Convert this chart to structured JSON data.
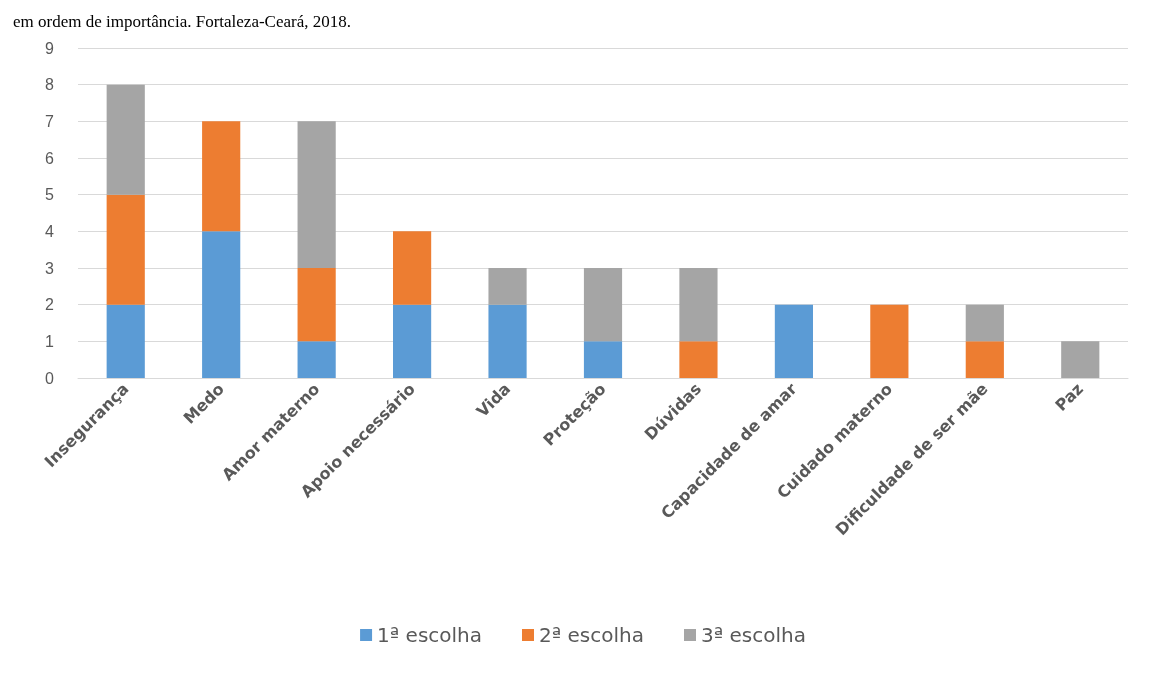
{
  "chart_data": {
    "type": "bar",
    "title": "em ordem de importância. Fortaleza-Ceará, 2018.",
    "stacked": true,
    "categories": [
      "Insegurança",
      "Medo",
      "Amor materno",
      "Apoio necessário",
      "Vida",
      "Proteção",
      "Dúvidas",
      "Capacidade de amar",
      "Cuidado materno",
      "Dificuldade de ser mãe",
      "Paz"
    ],
    "series": [
      {
        "name": "1ª escolha",
        "color": "#5b9bd5",
        "values": [
          2,
          4,
          1,
          2,
          2,
          1,
          0,
          2,
          0,
          0,
          0
        ]
      },
      {
        "name": "2ª escolha",
        "color": "#ed7d31",
        "values": [
          3,
          3,
          2,
          2,
          0,
          0,
          1,
          0,
          2,
          1,
          0
        ]
      },
      {
        "name": "3ª escolha",
        "color": "#a5a5a5",
        "values": [
          3,
          0,
          4,
          0,
          1,
          2,
          2,
          0,
          0,
          1,
          1
        ]
      }
    ],
    "ylim": [
      0,
      9
    ],
    "yticks": [
      0,
      1,
      2,
      3,
      4,
      5,
      6,
      7,
      8,
      9
    ],
    "grid": "y",
    "legend": "bottom"
  }
}
